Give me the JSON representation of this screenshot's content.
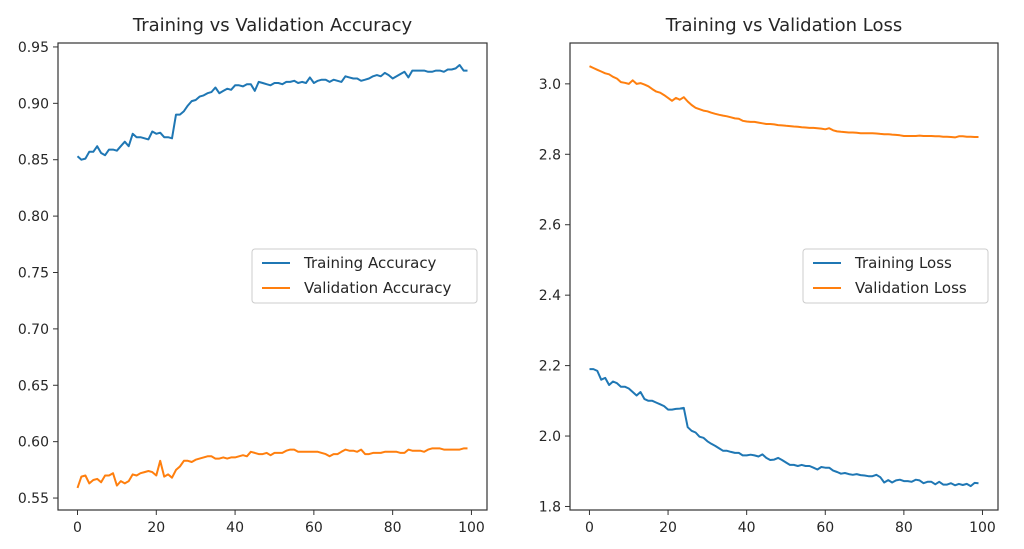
{
  "chart_data": [
    {
      "type": "line",
      "title": "Training vs Validation Accuracy",
      "xlabel": "",
      "ylabel": "",
      "xlim": [
        -4.95,
        103.95
      ],
      "ylim": [
        0.5394,
        0.9535
      ],
      "xticks": [
        0,
        20,
        40,
        60,
        80,
        100
      ],
      "yticks": [
        0.55,
        0.6,
        0.65,
        0.7,
        0.75,
        0.8,
        0.85,
        0.9,
        0.95
      ],
      "ytick_labels": [
        "0.55",
        "0.60",
        "0.65",
        "0.70",
        "0.75",
        "0.80",
        "0.85",
        "0.90",
        "0.95"
      ],
      "grid": false,
      "legend_position": "center-right",
      "series": [
        {
          "name": "Training Accuracy",
          "color": "#1f77b4",
          "values": [
            0.853,
            0.85,
            0.851,
            0.857,
            0.857,
            0.862,
            0.856,
            0.854,
            0.859,
            0.859,
            0.858,
            0.862,
            0.866,
            0.862,
            0.873,
            0.87,
            0.87,
            0.869,
            0.868,
            0.875,
            0.873,
            0.874,
            0.87,
            0.87,
            0.869,
            0.89,
            0.89,
            0.893,
            0.898,
            0.902,
            0.903,
            0.906,
            0.907,
            0.909,
            0.91,
            0.914,
            0.909,
            0.911,
            0.913,
            0.912,
            0.916,
            0.916,
            0.915,
            0.917,
            0.917,
            0.911,
            0.919,
            0.918,
            0.917,
            0.916,
            0.918,
            0.918,
            0.917,
            0.919,
            0.919,
            0.92,
            0.918,
            0.919,
            0.918,
            0.923,
            0.918,
            0.92,
            0.921,
            0.921,
            0.919,
            0.921,
            0.92,
            0.919,
            0.924,
            0.923,
            0.922,
            0.922,
            0.92,
            0.921,
            0.922,
            0.924,
            0.925,
            0.924,
            0.927,
            0.925,
            0.922,
            0.924,
            0.926,
            0.928,
            0.923,
            0.929,
            0.929,
            0.929,
            0.929,
            0.928,
            0.928,
            0.929,
            0.929,
            0.928,
            0.93,
            0.93,
            0.931,
            0.934,
            0.929,
            0.929
          ]
        },
        {
          "name": "Validation Accuracy",
          "color": "#ff7f0e",
          "values": [
            0.559,
            0.569,
            0.57,
            0.563,
            0.566,
            0.567,
            0.564,
            0.57,
            0.57,
            0.572,
            0.561,
            0.565,
            0.563,
            0.565,
            0.571,
            0.57,
            0.572,
            0.573,
            0.574,
            0.573,
            0.57,
            0.583,
            0.569,
            0.571,
            0.568,
            0.575,
            0.578,
            0.583,
            0.583,
            0.582,
            0.584,
            0.585,
            0.586,
            0.587,
            0.587,
            0.585,
            0.585,
            0.586,
            0.585,
            0.586,
            0.586,
            0.587,
            0.588,
            0.587,
            0.591,
            0.59,
            0.589,
            0.589,
            0.59,
            0.588,
            0.59,
            0.59,
            0.59,
            0.592,
            0.593,
            0.593,
            0.591,
            0.591,
            0.591,
            0.591,
            0.591,
            0.591,
            0.59,
            0.589,
            0.587,
            0.589,
            0.589,
            0.591,
            0.593,
            0.592,
            0.592,
            0.591,
            0.593,
            0.589,
            0.589,
            0.59,
            0.59,
            0.59,
            0.591,
            0.591,
            0.591,
            0.591,
            0.59,
            0.59,
            0.593,
            0.592,
            0.592,
            0.592,
            0.591,
            0.593,
            0.594,
            0.594,
            0.594,
            0.593,
            0.593,
            0.593,
            0.593,
            0.593,
            0.594,
            0.594
          ]
        }
      ]
    },
    {
      "type": "line",
      "title": "Training vs Validation Loss",
      "xlabel": "",
      "ylabel": "",
      "xlim": [
        -4.95,
        103.95
      ],
      "ylim": [
        1.79,
        3.116
      ],
      "xticks": [
        0,
        20,
        40,
        60,
        80,
        100
      ],
      "yticks": [
        1.8,
        2.0,
        2.2,
        2.4,
        2.6,
        2.8,
        3.0
      ],
      "ytick_labels": [
        "1.8",
        "2.0",
        "2.2",
        "2.4",
        "2.6",
        "2.8",
        "3.0"
      ],
      "grid": false,
      "legend_position": "center-right",
      "series": [
        {
          "name": "Training Loss",
          "color": "#1f77b4",
          "values": [
            2.19,
            2.19,
            2.185,
            2.16,
            2.165,
            2.145,
            2.155,
            2.15,
            2.14,
            2.14,
            2.135,
            2.125,
            2.115,
            2.125,
            2.105,
            2.1,
            2.1,
            2.095,
            2.09,
            2.085,
            2.075,
            2.075,
            2.077,
            2.078,
            2.08,
            2.025,
            2.015,
            2.01,
            1.998,
            1.995,
            1.985,
            1.978,
            1.972,
            1.965,
            1.958,
            1.958,
            1.955,
            1.952,
            1.952,
            1.945,
            1.945,
            1.947,
            1.945,
            1.942,
            1.948,
            1.938,
            1.932,
            1.933,
            1.938,
            1.932,
            1.925,
            1.918,
            1.918,
            1.915,
            1.918,
            1.915,
            1.915,
            1.91,
            1.905,
            1.912,
            1.91,
            1.91,
            1.902,
            1.898,
            1.893,
            1.895,
            1.892,
            1.89,
            1.892,
            1.889,
            1.888,
            1.886,
            1.886,
            1.89,
            1.883,
            1.868,
            1.875,
            1.868,
            1.874,
            1.876,
            1.872,
            1.872,
            1.87,
            1.876,
            1.874,
            1.866,
            1.87,
            1.87,
            1.863,
            1.87,
            1.862,
            1.862,
            1.866,
            1.86,
            1.864,
            1.861,
            1.864,
            1.858,
            1.867,
            1.866
          ]
        },
        {
          "name": "Validation Loss",
          "color": "#ff7f0e",
          "values": [
            3.05,
            3.045,
            3.04,
            3.035,
            3.03,
            3.027,
            3.02,
            3.015,
            3.005,
            3.003,
            3.0,
            3.01,
            3.0,
            3.002,
            2.998,
            2.993,
            2.985,
            2.978,
            2.975,
            2.968,
            2.96,
            2.952,
            2.96,
            2.955,
            2.962,
            2.95,
            2.94,
            2.932,
            2.928,
            2.924,
            2.922,
            2.918,
            2.915,
            2.912,
            2.91,
            2.908,
            2.905,
            2.902,
            2.901,
            2.895,
            2.893,
            2.892,
            2.892,
            2.89,
            2.888,
            2.886,
            2.886,
            2.885,
            2.883,
            2.882,
            2.881,
            2.88,
            2.879,
            2.878,
            2.877,
            2.876,
            2.875,
            2.875,
            2.874,
            2.873,
            2.871,
            2.874,
            2.868,
            2.865,
            2.864,
            2.863,
            2.862,
            2.862,
            2.861,
            2.86,
            2.86,
            2.86,
            2.86,
            2.859,
            2.858,
            2.857,
            2.857,
            2.856,
            2.855,
            2.854,
            2.852,
            2.852,
            2.852,
            2.852,
            2.853,
            2.852,
            2.852,
            2.852,
            2.851,
            2.851,
            2.85,
            2.85,
            2.849,
            2.848,
            2.851,
            2.851,
            2.85,
            2.85,
            2.849,
            2.849
          ]
        }
      ]
    }
  ]
}
